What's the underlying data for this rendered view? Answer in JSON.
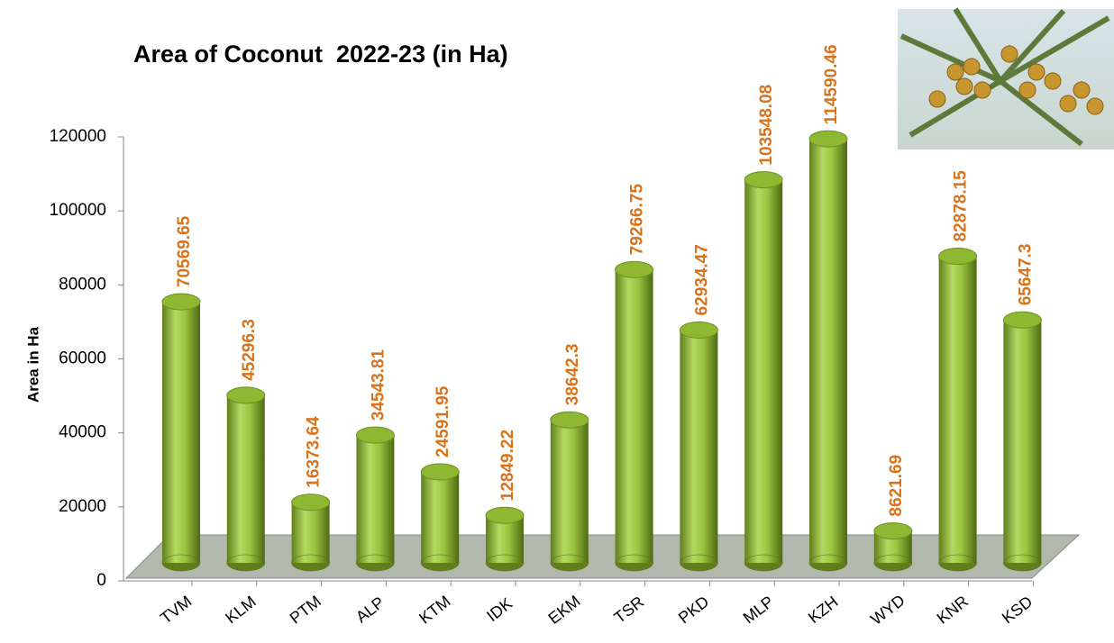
{
  "chart_data": {
    "type": "bar",
    "title": "Area of Coconut  2022-23 (in Ha)",
    "y_label": "Area in Ha",
    "categories": [
      "TVM",
      "KLM",
      "PTM",
      "ALP",
      "KTM",
      "IDK",
      "EKM",
      "TSR",
      "PKD",
      "MLP",
      "KZH",
      "WYD",
      "KNR",
      "KSD"
    ],
    "values": [
      70569.65,
      45296.3,
      16373.64,
      34543.81,
      24591.95,
      12849.22,
      38642.3,
      79266.75,
      62934.47,
      103548.08,
      114590.46,
      8621.69,
      82878.15,
      65647.3
    ],
    "color": "#8fb832",
    "label_color": "#d9731b",
    "ylim": [
      0,
      120000
    ],
    "yticks": [
      0,
      20000,
      40000,
      60000,
      80000,
      100000,
      120000
    ],
    "grid": false
  }
}
